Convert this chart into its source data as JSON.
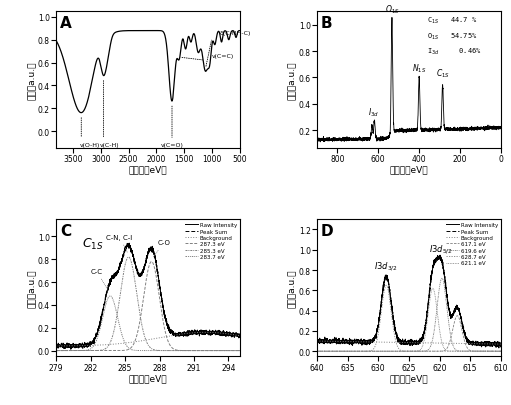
{
  "panel_A": {
    "xlabel": "结合能（eV）",
    "ylabel": "强度（a.u.）",
    "label": "A"
  },
  "panel_B": {
    "xlabel": "结合能（eV）",
    "ylabel": "强度（a.u.）",
    "label": "B",
    "legend_lines": [
      "C$_{1S}$   44.7 %",
      "O$_{1S}$   54.75%",
      "I$_{3d}$     0.46%"
    ]
  },
  "panel_C": {
    "xlabel": "结合能（eV）",
    "ylabel": "强度（a.u.）",
    "label": "C",
    "legend_entries": [
      "Raw Intensity",
      "Peak Sum",
      "Background",
      "287.3 eV",
      "285.3 eV",
      "283.7 eV"
    ]
  },
  "panel_D": {
    "xlabel": "结合能（eV）",
    "ylabel": "强度（a.u.）",
    "label": "D",
    "legend_entries": [
      "Raw Intensity",
      "Peak Sum",
      "Background",
      "617.1 eV",
      "619.6 eV",
      "628.7 eV",
      "621.1 eV"
    ]
  }
}
